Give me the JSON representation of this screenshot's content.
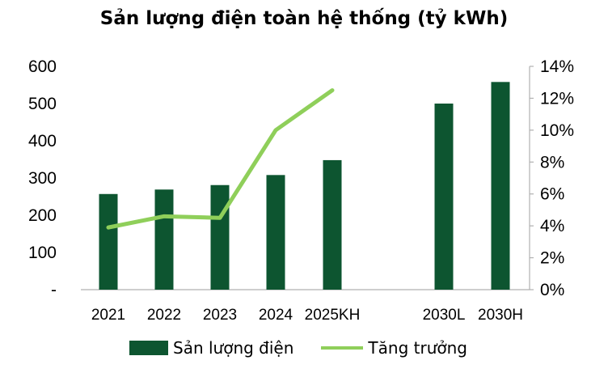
{
  "chart_data": {
    "type": "bar",
    "title": "Sản lượng điện toàn hệ thống (tỷ kWh)",
    "categories": [
      "2021",
      "2022",
      "2023",
      "2024",
      "2025KH",
      "",
      "2030L",
      "2030H"
    ],
    "series": [
      {
        "name": "Sản lượng điện",
        "type": "bar",
        "axis": "left",
        "values": [
          257,
          269,
          281,
          308,
          348,
          null,
          500,
          558
        ]
      },
      {
        "name": "Tăng trưởng",
        "type": "line",
        "axis": "right",
        "values": [
          0.039,
          0.046,
          0.045,
          0.1,
          0.125,
          null,
          null,
          null
        ]
      }
    ],
    "y_left": {
      "ticks": [
        "-",
        "100",
        "200",
        "300",
        "400",
        "500",
        "600"
      ],
      "ylim": [
        0,
        600
      ]
    },
    "y_right": {
      "ticks": [
        "0%",
        "2%",
        "4%",
        "6%",
        "8%",
        "10%",
        "12%",
        "14%"
      ],
      "ylim": [
        0,
        0.14
      ]
    },
    "legend_position": "bottom",
    "grid": false
  },
  "colors": {
    "bar": "#0d5530",
    "line": "#8fcf5a",
    "axis": "#b0b0b0"
  }
}
